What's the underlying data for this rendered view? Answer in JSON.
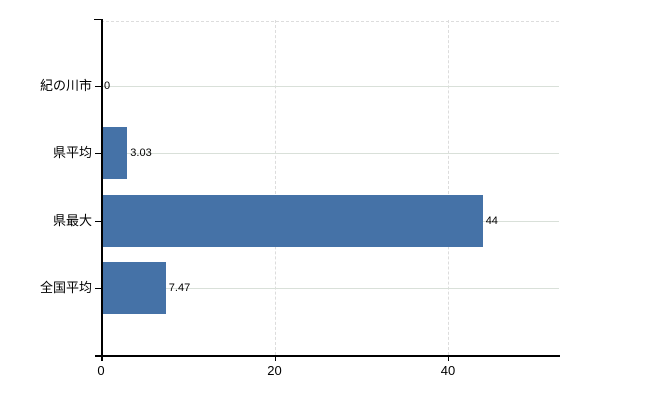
{
  "chart_data": {
    "type": "bar",
    "orientation": "horizontal",
    "title": "",
    "categories": [
      "紀の川市",
      "県平均",
      "県最大",
      "全国平均"
    ],
    "values": [
      0,
      3.03,
      44,
      7.47
    ],
    "value_labels": [
      "0",
      "3.03",
      "44",
      "7.47"
    ],
    "x_ticks": [
      0,
      20,
      40
    ],
    "x_tick_labels": [
      "0",
      "20",
      "40"
    ],
    "xlim": [
      0,
      52.9
    ],
    "grid": true,
    "legend": false,
    "colors": {
      "bar": "#4572a7",
      "axis": "#000000",
      "grid_horizontal": "#d9e0d9",
      "grid_vertical": "#dcdcdc",
      "plot_border": "#dddddd",
      "label": "#000000",
      "background": "#ffffff"
    }
  }
}
